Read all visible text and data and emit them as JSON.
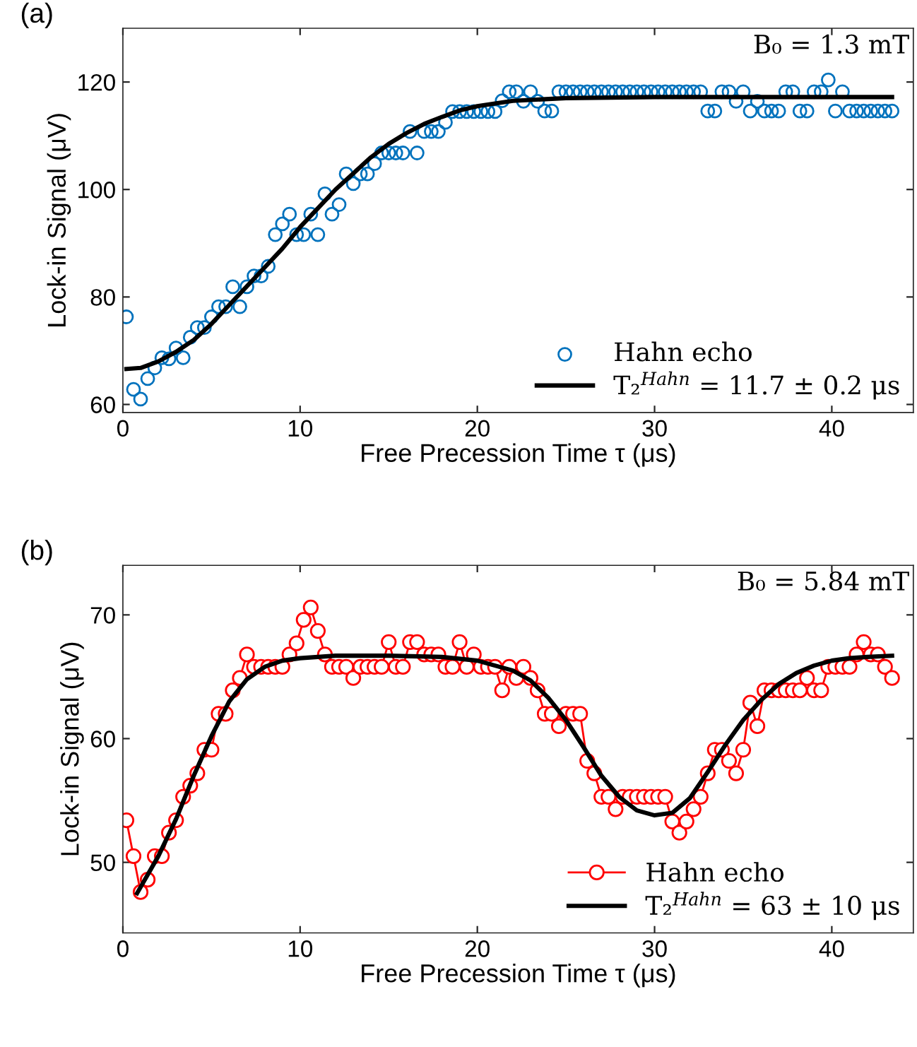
{
  "chart_data": [
    {
      "type": "scatter",
      "title": "(a)",
      "xlabel": "Free Precession Time τ (μs)",
      "ylabel": "Lock-in Signal (μV)",
      "xlim": [
        0,
        44.6
      ],
      "ylim": [
        58.5,
        130
      ],
      "xticks": [
        0,
        10,
        20,
        30,
        40
      ],
      "yticks": [
        60,
        80,
        100,
        120
      ],
      "grid": false,
      "legend": "bottom right",
      "annotations": [
        "B₀ = 1.3 mT"
      ],
      "series": [
        {
          "name": "Hahn echo",
          "marker": "circle",
          "color": "#0072bd",
          "x": [
            0.2,
            0.6,
            1.0,
            1.4,
            1.8,
            2.2,
            2.6,
            3.0,
            3.4,
            3.8,
            4.2,
            4.6,
            5.0,
            5.4,
            5.8,
            6.2,
            6.6,
            7.0,
            7.4,
            7.8,
            8.2,
            8.6,
            9.0,
            9.4,
            9.8,
            10.2,
            10.6,
            11.0,
            11.4,
            11.8,
            12.2,
            12.6,
            13.0,
            13.4,
            13.8,
            14.2,
            14.6,
            15.0,
            15.4,
            15.8,
            16.2,
            16.6,
            17.0,
            17.4,
            17.8,
            18.2,
            18.6,
            19.0,
            19.4,
            19.8,
            20.2,
            20.6,
            21.0,
            21.4,
            21.8,
            22.2,
            22.6,
            23.0,
            23.4,
            23.8,
            24.2,
            24.6,
            25.0,
            25.4,
            25.8,
            26.2,
            26.6,
            27.0,
            27.4,
            27.8,
            28.2,
            28.6,
            29.0,
            29.4,
            29.8,
            30.2,
            30.6,
            31.0,
            31.4,
            31.8,
            32.2,
            32.6,
            33.0,
            33.4,
            33.8,
            34.2,
            34.6,
            35.0,
            35.4,
            35.8,
            36.2,
            36.6,
            37.0,
            37.4,
            37.8,
            38.2,
            38.6,
            39.0,
            39.4,
            39.8,
            40.2,
            40.6,
            41.0,
            41.4,
            41.8,
            42.2,
            42.6,
            43.0,
            43.4
          ],
          "values": [
            76.3,
            62.8,
            61,
            64.8,
            66.8,
            68.7,
            68.5,
            70.5,
            68.7,
            72.5,
            74.3,
            74.3,
            76.3,
            78.2,
            78.2,
            81.9,
            78.2,
            81.9,
            83.9,
            83.9,
            85.7,
            91.6,
            93.6,
            95.4,
            91.6,
            91.6,
            95.4,
            91.6,
            99.2,
            95.4,
            97.2,
            102.9,
            101.1,
            102.9,
            102.9,
            104.8,
            106.8,
            106.8,
            106.8,
            106.8,
            110.8,
            106.8,
            110.8,
            110.8,
            110.8,
            112.5,
            114.5,
            114.5,
            114.5,
            114.5,
            114.5,
            114.5,
            114.5,
            116.5,
            118.2,
            118.2,
            116.4,
            118.2,
            116.4,
            114.6,
            114.6,
            118.2,
            118.2,
            118.2,
            118.2,
            118.2,
            118.2,
            118.2,
            118.2,
            118.2,
            118.2,
            118.2,
            118.2,
            118.2,
            118.2,
            118.2,
            118.2,
            118.2,
            118.2,
            118.2,
            118.2,
            118.2,
            114.6,
            114.6,
            118.2,
            118.2,
            116.4,
            118.2,
            114.6,
            116.4,
            114.6,
            114.6,
            114.6,
            118.2,
            118.2,
            114.6,
            114.6,
            118.2,
            118.2,
            120.4,
            114.6,
            118.2,
            114.6,
            114.6,
            114.6,
            114.6,
            114.6,
            114.6,
            114.6
          ]
        },
        {
          "name": "T₂$^{Hahn}$ = 11.7 ± 0.2 μs",
          "type": "line",
          "marker": "none",
          "line_style": "solid",
          "color": "#000000",
          "x": [
            0.2,
            1,
            2,
            3,
            4,
            5,
            6,
            7,
            8,
            9,
            10,
            11,
            12,
            13,
            14,
            15,
            16,
            17,
            18,
            19,
            20,
            21,
            22,
            25,
            30,
            35,
            43.4
          ],
          "values": [
            66.6,
            66.8,
            68,
            69.8,
            72,
            75,
            78.5,
            82,
            85.5,
            89,
            93,
            96.5,
            100,
            103,
            106,
            108.5,
            110.5,
            112.2,
            113.5,
            114.7,
            115.5,
            116,
            116.5,
            117,
            117.2,
            117.2,
            117.2
          ]
        }
      ]
    },
    {
      "type": "line",
      "title": "(b)",
      "xlabel": "Free Precession Time τ (μs)",
      "ylabel": "Lock-in Signal (μV)",
      "xlim": [
        0,
        44.6
      ],
      "ylim": [
        44.3,
        74
      ],
      "xticks": [
        0,
        10,
        20,
        30,
        40
      ],
      "yticks": [
        50,
        60,
        70
      ],
      "grid": false,
      "legend": "bottom right",
      "annotations": [
        "B₀ = 5.84 mT"
      ],
      "series": [
        {
          "name": "Hahn echo",
          "marker": "circle",
          "line_style": "solid",
          "color": "#ff0000",
          "x": [
            0.2,
            0.6,
            1.0,
            1.4,
            1.8,
            2.2,
            2.6,
            3.0,
            3.4,
            3.8,
            4.2,
            4.6,
            5.0,
            5.4,
            5.8,
            6.2,
            6.6,
            7.0,
            7.4,
            7.8,
            8.2,
            8.6,
            9.0,
            9.4,
            9.8,
            10.2,
            10.6,
            11.0,
            11.4,
            11.8,
            12.2,
            12.6,
            13.0,
            13.4,
            13.8,
            14.2,
            14.6,
            15.0,
            15.4,
            15.8,
            16.2,
            16.6,
            17.0,
            17.4,
            17.8,
            18.2,
            18.6,
            19.0,
            19.4,
            19.8,
            20.2,
            20.6,
            21.0,
            21.4,
            21.8,
            22.2,
            22.6,
            23.0,
            23.4,
            23.8,
            24.2,
            24.6,
            25.0,
            25.4,
            25.8,
            26.2,
            26.6,
            27.0,
            27.4,
            27.8,
            28.2,
            28.6,
            29.0,
            29.4,
            29.8,
            30.2,
            30.6,
            31.0,
            31.4,
            31.8,
            32.2,
            32.6,
            33.0,
            33.4,
            33.8,
            34.2,
            34.6,
            35.0,
            35.4,
            35.8,
            36.2,
            36.6,
            37.0,
            37.4,
            37.8,
            38.2,
            38.6,
            39.0,
            39.4,
            39.8,
            40.2,
            40.6,
            41.0,
            41.4,
            41.8,
            42.2,
            42.6,
            43.0,
            43.4
          ],
          "values": [
            53.4,
            50.5,
            47.6,
            48.6,
            50.5,
            50.5,
            52.4,
            53.4,
            55.3,
            56.2,
            57.2,
            59.1,
            59.1,
            62.0,
            62.0,
            63.9,
            64.9,
            66.8,
            65.8,
            65.8,
            65.8,
            65.8,
            65.8,
            66.8,
            67.7,
            69.6,
            70.6,
            68.7,
            66.8,
            65.8,
            65.8,
            65.8,
            64.9,
            65.8,
            65.8,
            65.8,
            65.8,
            67.8,
            65.8,
            65.8,
            67.8,
            67.8,
            66.8,
            66.8,
            66.8,
            65.8,
            65.8,
            67.8,
            65.8,
            66.8,
            65.8,
            65.8,
            65.8,
            63.9,
            65.8,
            64.9,
            65.8,
            64.9,
            63.9,
            62.0,
            62.0,
            61.0,
            62.0,
            62.0,
            62.0,
            58.2,
            57.2,
            55.3,
            55.3,
            54.3,
            55.3,
            55.3,
            55.3,
            55.3,
            55.3,
            55.3,
            55.3,
            53.3,
            52.4,
            53.3,
            54.3,
            55.3,
            57.2,
            59.1,
            59.1,
            58.2,
            57.2,
            59.1,
            62.9,
            61.0,
            63.9,
            63.9,
            63.9,
            63.9,
            63.9,
            63.9,
            64.9,
            63.9,
            63.9,
            65.8,
            65.8,
            65.8,
            65.8,
            66.8,
            67.8,
            66.8,
            66.8,
            65.8,
            64.9
          ]
        },
        {
          "name": "T₂$^{Hahn}$ = 63 ± 10 μs",
          "type": "line",
          "marker": "none",
          "line_style": "solid",
          "color": "#000000",
          "x": [
            0.8,
            2,
            3,
            4,
            5,
            6,
            7,
            8,
            9,
            10,
            12,
            15,
            18,
            20,
            22,
            23,
            24,
            25,
            26,
            27,
            28,
            29,
            30,
            31,
            32,
            33,
            34,
            35,
            36,
            37,
            38,
            39,
            40,
            41,
            42,
            43.4
          ],
          "values": [
            47.5,
            50.5,
            53.5,
            57,
            60.2,
            63,
            64.8,
            65.8,
            66.3,
            66.5,
            66.7,
            66.7,
            66.6,
            66.3,
            65.5,
            64.7,
            63.3,
            61.5,
            59.3,
            57,
            55.3,
            54.2,
            53.8,
            54,
            55.2,
            57.3,
            59.5,
            61.5,
            63.1,
            64.4,
            65.3,
            65.9,
            66.3,
            66.5,
            66.6,
            66.7
          ]
        }
      ]
    }
  ]
}
